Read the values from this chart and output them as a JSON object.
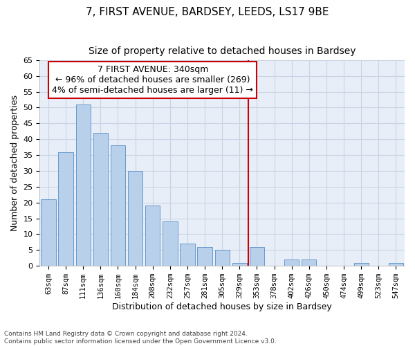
{
  "title": "7, FIRST AVENUE, BARDSEY, LEEDS, LS17 9BE",
  "subtitle": "Size of property relative to detached houses in Bardsey",
  "xlabel": "Distribution of detached houses by size in Bardsey",
  "ylabel": "Number of detached properties",
  "footnote1": "Contains HM Land Registry data © Crown copyright and database right 2024.",
  "footnote2": "Contains public sector information licensed under the Open Government Licence v3.0.",
  "bar_labels": [
    "63sqm",
    "87sqm",
    "111sqm",
    "136sqm",
    "160sqm",
    "184sqm",
    "208sqm",
    "232sqm",
    "257sqm",
    "281sqm",
    "305sqm",
    "329sqm",
    "353sqm",
    "378sqm",
    "402sqm",
    "426sqm",
    "450sqm",
    "474sqm",
    "499sqm",
    "523sqm",
    "547sqm"
  ],
  "bar_values": [
    21,
    36,
    51,
    42,
    38,
    30,
    19,
    14,
    7,
    6,
    5,
    1,
    6,
    0,
    2,
    2,
    0,
    0,
    1,
    0,
    1
  ],
  "bar_color": "#b8d0ea",
  "bar_edge_color": "#6699cc",
  "grid_color": "#c8d4e4",
  "bg_color": "#e8eef8",
  "vline_idx": 11,
  "vline_color": "#cc0000",
  "annotation_line1": "7 FIRST AVENUE: 340sqm",
  "annotation_line2": "← 96% of detached houses are smaller (269)",
  "annotation_line3": "4% of semi-detached houses are larger (11) →",
  "annotation_box_color": "#cc0000",
  "ylim": [
    0,
    65
  ],
  "yticks": [
    0,
    5,
    10,
    15,
    20,
    25,
    30,
    35,
    40,
    45,
    50,
    55,
    60,
    65
  ],
  "title_fontsize": 11,
  "subtitle_fontsize": 10,
  "annotation_fontsize": 9,
  "tick_fontsize": 7.5,
  "ylabel_fontsize": 9,
  "xlabel_fontsize": 9
}
